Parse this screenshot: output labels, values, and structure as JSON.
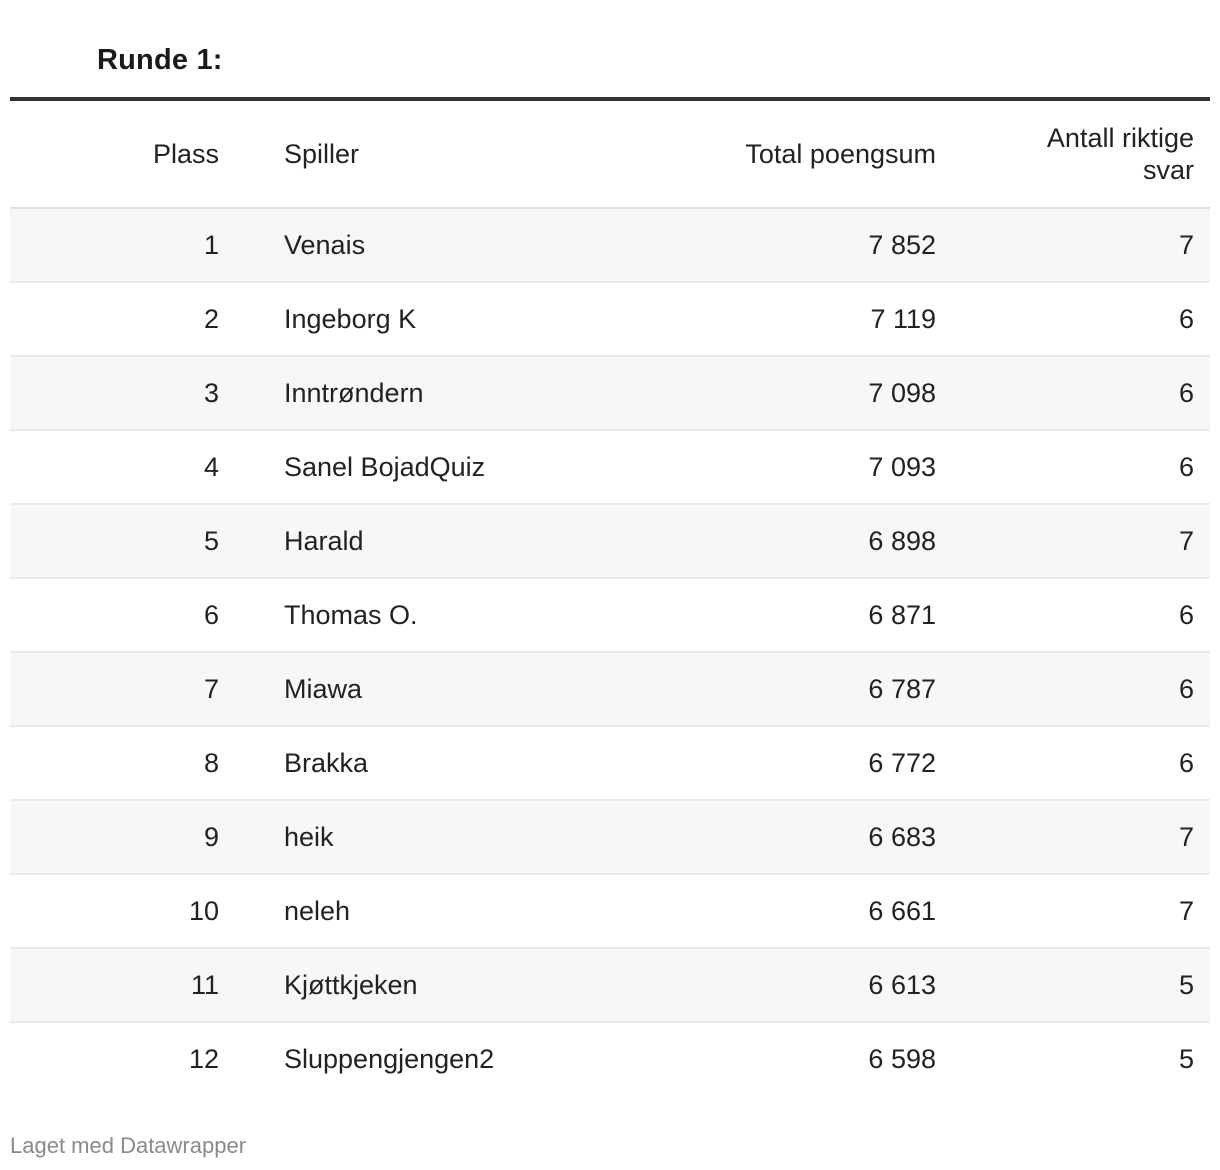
{
  "title": "Runde 1:",
  "chart_data": {
    "type": "table",
    "title": "Runde 1:",
    "columns": [
      "Plass",
      "Spiller",
      "Total poengsum",
      "Antall riktige svar"
    ],
    "rows": [
      {
        "plass": "1",
        "spiller": "Venais",
        "total": "7 852",
        "antall": "7"
      },
      {
        "plass": "2",
        "spiller": "Ingeborg K",
        "total": "7 119",
        "antall": "6"
      },
      {
        "plass": "3",
        "spiller": "Inntrøndern",
        "total": "7 098",
        "antall": "6"
      },
      {
        "plass": "4",
        "spiller": "Sanel BojadQuiz",
        "total": "7 093",
        "antall": "6"
      },
      {
        "plass": "5",
        "spiller": "Harald",
        "total": "6 898",
        "antall": "7"
      },
      {
        "plass": "6",
        "spiller": "Thomas O.",
        "total": "6 871",
        "antall": "6"
      },
      {
        "plass": "7",
        "spiller": "Miawa",
        "total": "6 787",
        "antall": "6"
      },
      {
        "plass": "8",
        "spiller": "Brakka",
        "total": "6 772",
        "antall": "6"
      },
      {
        "plass": "9",
        "spiller": "heik",
        "total": "6 683",
        "antall": "7"
      },
      {
        "plass": "10",
        "spiller": "neleh",
        "total": "6 661",
        "antall": "7"
      },
      {
        "plass": "11",
        "spiller": "Kjøttkjeken",
        "total": "6 613",
        "antall": "5"
      },
      {
        "plass": "12",
        "spiller": "Sluppengjengen2",
        "total": "6 598",
        "antall": "5"
      }
    ]
  },
  "headers": {
    "plass": "Plass",
    "spiller": "Spiller",
    "total": "Total poengsum",
    "antall_line1": "Antall riktige",
    "antall_line2": "svar"
  },
  "footer": "Laget med Datawrapper"
}
